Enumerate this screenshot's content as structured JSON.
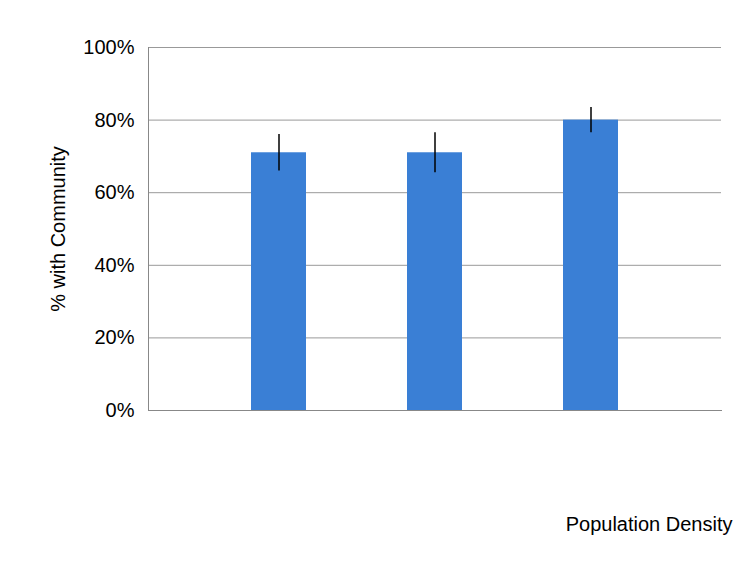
{
  "chart_data": {
    "type": "bar",
    "categories": [
      null,
      null,
      null
    ],
    "values": [
      71,
      71,
      80
    ],
    "errors": [
      5,
      5.5,
      3.5
    ],
    "color": "#3a7fd5",
    "xlabel": "Population Density",
    "ylabel": "% with Community",
    "ylim": [
      0,
      100
    ],
    "yticks": [
      {
        "value": 0,
        "label": "0%"
      },
      {
        "value": 20,
        "label": "20%"
      },
      {
        "value": 40,
        "label": "40%"
      },
      {
        "value": 60,
        "label": "60%"
      },
      {
        "value": 80,
        "label": "80%"
      },
      {
        "value": 100,
        "label": "100%"
      }
    ],
    "grid": true
  }
}
